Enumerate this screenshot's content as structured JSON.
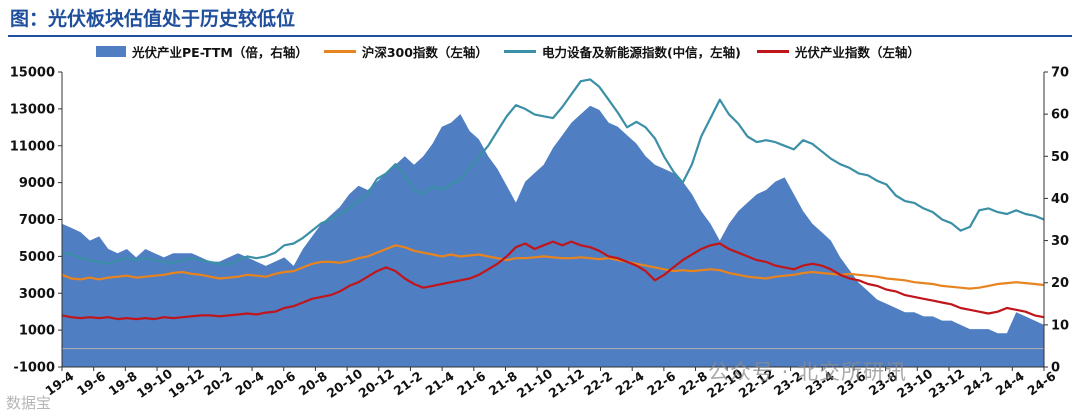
{
  "title": "图：光伏板块估值处于历史较低位",
  "watermark": "公众号 · 北交所研讯",
  "corner_watermark": "数据宝",
  "chart_data": {
    "type": "area",
    "legend_position": "top",
    "grid": false,
    "colors": {
      "pe": "#4f7ec2",
      "hs300": "#e8841f",
      "new_energy": "#3b8fa6",
      "pv": "#c0161b"
    },
    "x_tick_labels": [
      "19-4",
      "19-6",
      "19-8",
      "19-10",
      "19-12",
      "20-2",
      "20-4",
      "20-6",
      "20-8",
      "20-10",
      "20-12",
      "21-2",
      "21-4",
      "21-6",
      "21-8",
      "21-10",
      "21-12",
      "22-2",
      "22-4",
      "22-6",
      "22-8",
      "22-10",
      "22-12",
      "23-2",
      "23-4",
      "23-6",
      "23-8",
      "23-10",
      "23-12",
      "24-2",
      "24-4",
      "24-6"
    ],
    "y_left": {
      "min": -1000,
      "max": 15000,
      "ticks": [
        -1000,
        1000,
        3000,
        5000,
        7000,
        9000,
        11000,
        13000,
        15000
      ]
    },
    "y_right": {
      "min": 0,
      "max": 70,
      "ticks": [
        0,
        10,
        20,
        30,
        40,
        50,
        60,
        70
      ]
    },
    "series": [
      {
        "name": "光伏产业PE-TTM（倍，右轴）",
        "type": "area",
        "axis": "right",
        "color": "#4f7ec2",
        "values": [
          34,
          33,
          32,
          30,
          31,
          28,
          27,
          28,
          26,
          28,
          27,
          26,
          27,
          27,
          27,
          26,
          25,
          25,
          26,
          27,
          26,
          25,
          24,
          25,
          26,
          24,
          28,
          31,
          34,
          36,
          38,
          41,
          43,
          42,
          44,
          46,
          48,
          50,
          48,
          50,
          53,
          57,
          58,
          60,
          56,
          54,
          50,
          47,
          43,
          39,
          44,
          46,
          48,
          52,
          55,
          58,
          60,
          62,
          61,
          58,
          57,
          55,
          53,
          50,
          48,
          47,
          46,
          44,
          41,
          37,
          34,
          30,
          34,
          37,
          39,
          41,
          42,
          44,
          45,
          41,
          37,
          34,
          32,
          30,
          26,
          23,
          20,
          18,
          16,
          15,
          14,
          13,
          13,
          12,
          12,
          11,
          11,
          10,
          9,
          9,
          9,
          8,
          8,
          13,
          12,
          11,
          10
        ]
      },
      {
        "name": "沪深300指数（左轴）",
        "type": "line",
        "axis": "left",
        "color": "#e8841f",
        "values": [
          4000,
          3800,
          3750,
          3850,
          3750,
          3850,
          3900,
          3950,
          3850,
          3900,
          3950,
          4000,
          4100,
          4150,
          4050,
          4000,
          3900,
          3800,
          3850,
          3900,
          4000,
          3950,
          3900,
          4050,
          4150,
          4200,
          4400,
          4600,
          4700,
          4700,
          4650,
          4750,
          4900,
          5000,
          5200,
          5400,
          5600,
          5500,
          5300,
          5200,
          5100,
          5000,
          5100,
          5000,
          5050,
          5100,
          5000,
          4900,
          4800,
          4900,
          4900,
          4950,
          5000,
          4950,
          4900,
          4900,
          4950,
          4900,
          4850,
          4900,
          4800,
          4700,
          4600,
          4500,
          4400,
          4300,
          4200,
          4250,
          4200,
          4250,
          4300,
          4250,
          4100,
          4000,
          3900,
          3850,
          3800,
          3900,
          3950,
          4000,
          4100,
          4150,
          4100,
          4050,
          4000,
          4050,
          4000,
          3950,
          3900,
          3800,
          3750,
          3700,
          3600,
          3550,
          3500,
          3400,
          3350,
          3300,
          3250,
          3300,
          3400,
          3500,
          3550,
          3600,
          3550,
          3500,
          3450
        ]
      },
      {
        "name": "电力设备及新能源指数(中信，左轴)",
        "type": "line",
        "axis": "left",
        "color": "#3b8fa6",
        "values": [
          5200,
          5100,
          4900,
          4800,
          4700,
          4600,
          4800,
          4900,
          4800,
          4900,
          4800,
          4700,
          4650,
          4800,
          4900,
          4800,
          4700,
          4600,
          4550,
          4800,
          5000,
          4900,
          5000,
          5200,
          5600,
          5700,
          6000,
          6400,
          6800,
          7000,
          7300,
          7600,
          8000,
          8400,
          9200,
          9500,
          10000,
          9400,
          8600,
          8400,
          8800,
          8600,
          8900,
          9200,
          9800,
          10400,
          11000,
          11800,
          12600,
          13200,
          13000,
          12700,
          12600,
          12500,
          13100,
          13800,
          14500,
          14600,
          14200,
          13500,
          12800,
          12000,
          12300,
          12000,
          11400,
          10400,
          9600,
          9000,
          10000,
          11500,
          12500,
          13500,
          12700,
          12200,
          11500,
          11200,
          11300,
          11200,
          11000,
          10800,
          11300,
          11100,
          10700,
          10300,
          10000,
          9800,
          9500,
          9400,
          9100,
          8900,
          8300,
          8000,
          7900,
          7600,
          7400,
          7000,
          6800,
          6400,
          6600,
          7500,
          7600,
          7400,
          7300,
          7500,
          7300,
          7200,
          7000
        ]
      },
      {
        "name": "光伏产业指数（左轴）",
        "type": "line",
        "axis": "left",
        "color": "#c0161b",
        "values": [
          1800,
          1700,
          1650,
          1700,
          1650,
          1700,
          1600,
          1650,
          1600,
          1650,
          1600,
          1700,
          1650,
          1700,
          1750,
          1800,
          1800,
          1750,
          1800,
          1850,
          1900,
          1850,
          1950,
          2000,
          2200,
          2300,
          2500,
          2700,
          2800,
          2900,
          3100,
          3400,
          3600,
          3900,
          4200,
          4400,
          4200,
          3800,
          3500,
          3300,
          3400,
          3500,
          3600,
          3700,
          3800,
          4000,
          4300,
          4600,
          5000,
          5500,
          5700,
          5400,
          5600,
          5800,
          5600,
          5800,
          5600,
          5500,
          5300,
          5000,
          4900,
          4700,
          4500,
          4200,
          3700,
          4000,
          4400,
          4800,
          5100,
          5400,
          5600,
          5700,
          5400,
          5200,
          5000,
          4800,
          4700,
          4500,
          4400,
          4300,
          4500,
          4600,
          4500,
          4300,
          4000,
          3800,
          3700,
          3500,
          3400,
          3200,
          3100,
          2900,
          2800,
          2700,
          2600,
          2500,
          2400,
          2200,
          2100,
          2000,
          1900,
          2000,
          2200,
          2100,
          2000,
          1800,
          1700
        ]
      }
    ]
  }
}
